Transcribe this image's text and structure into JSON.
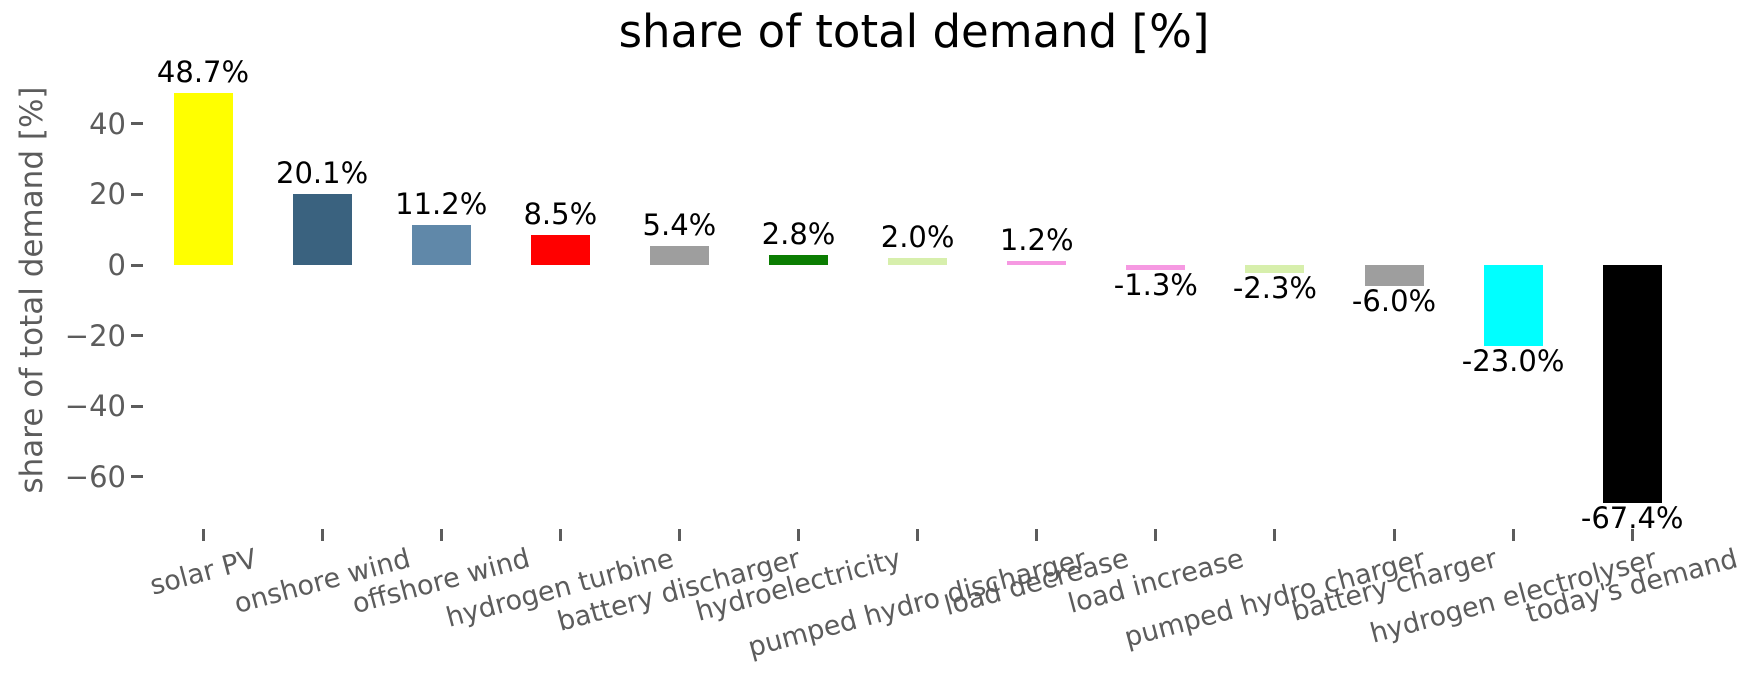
{
  "chart_data": {
    "type": "bar",
    "title": "share of total demand [%]",
    "ylabel": "share of total demand [%]",
    "xlabel": "",
    "categories": [
      "solar PV",
      "onshore wind",
      "offshore wind",
      "hydrogen turbine",
      "battery discharger",
      "hydroelectricity",
      "pumped hydro discharger",
      "load decrease",
      "load increase",
      "pumped hydro charger",
      "battery charger",
      "hydrogen electrolyser",
      "today's demand"
    ],
    "values": [
      48.7,
      20.1,
      11.2,
      8.5,
      5.4,
      2.8,
      2.0,
      1.2,
      -1.3,
      -2.3,
      -6.0,
      -23.0,
      -67.4
    ],
    "value_labels": [
      "48.7%",
      "20.1%",
      "11.2%",
      "8.5%",
      "5.4%",
      "2.8%",
      "2.0%",
      "1.2%",
      "-1.3%",
      "-2.3%",
      "-6.0%",
      "-23.0%",
      "-67.4%"
    ],
    "bar_colors": [
      "#ffff00",
      "#3a627f",
      "#6088a9",
      "#ff0000",
      "#9e9e9e",
      "#0b7d02",
      "#d7efac",
      "#f699e2",
      "#f699e2",
      "#d7efac",
      "#9e9e9e",
      "#00ffff",
      "#000000"
    ],
    "yticks": [
      {
        "value": 40,
        "label": "40"
      },
      {
        "value": 20,
        "label": "20"
      },
      {
        "value": 0,
        "label": "0"
      },
      {
        "value": -20,
        "label": "−20"
      },
      {
        "value": -40,
        "label": "−40"
      },
      {
        "value": -60,
        "label": "−60"
      }
    ],
    "ylim": [
      -75,
      57
    ],
    "grid": false,
    "legend": "none",
    "xtick_rotation_deg": 15,
    "colors": {
      "axis_text": "#5c5c5c",
      "value_text": "#000000",
      "title_text": "#000000",
      "background": "#ffffff"
    }
  }
}
